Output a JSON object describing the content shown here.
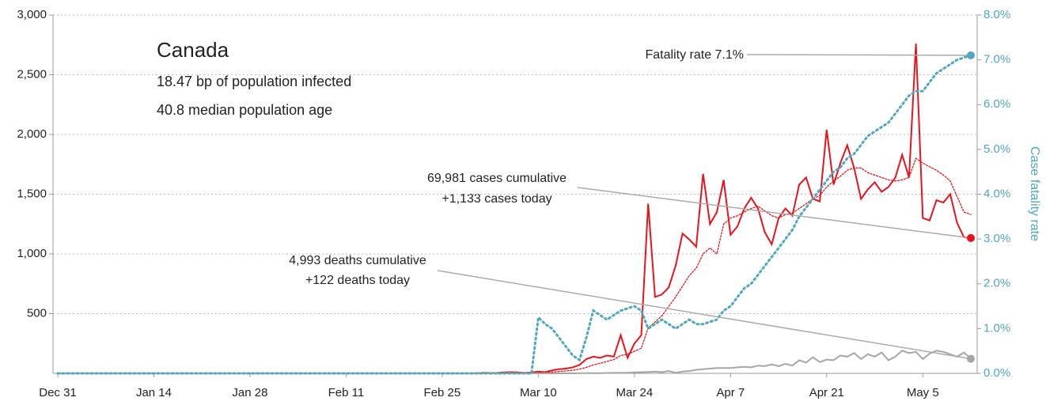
{
  "chart_data": {
    "type": "line",
    "title": "Canada",
    "subtitle": [
      "18.47 bp of population infected",
      "40.8 median population age"
    ],
    "y2label": "Case fatality rate",
    "annotations": {
      "fatality": "Fatality rate 7.1%",
      "cases": [
        "69,981 cases cumulative",
        "+1,133 cases today"
      ],
      "deaths": [
        "4,993 deaths cumulative",
        "+122 deaths today"
      ]
    },
    "categories": [
      "Dec 31",
      null,
      null,
      null,
      null,
      null,
      null,
      null,
      null,
      null,
      null,
      null,
      null,
      null,
      "Jan 14",
      null,
      null,
      null,
      null,
      null,
      null,
      null,
      null,
      null,
      null,
      null,
      null,
      null,
      "Jan 28",
      null,
      null,
      null,
      null,
      null,
      null,
      null,
      null,
      null,
      null,
      null,
      null,
      null,
      "Feb 11",
      null,
      null,
      null,
      null,
      null,
      null,
      null,
      null,
      null,
      null,
      null,
      null,
      null,
      "Feb 25",
      null,
      null,
      null,
      null,
      null,
      null,
      null,
      null,
      null,
      null,
      null,
      null,
      null,
      "Mar 10",
      null,
      null,
      null,
      null,
      null,
      null,
      null,
      null,
      null,
      null,
      null,
      null,
      null,
      "Mar 24",
      null,
      null,
      null,
      null,
      null,
      null,
      null,
      null,
      null,
      null,
      null,
      null,
      null,
      "Apr 7",
      null,
      null,
      null,
      null,
      null,
      null,
      null,
      null,
      null,
      null,
      null,
      null,
      null,
      "Apr 21",
      null,
      null,
      null,
      null,
      null,
      null,
      null,
      null,
      null,
      null,
      null,
      null,
      null,
      "May 5",
      null,
      null,
      null,
      null,
      null,
      null,
      null
    ],
    "series": [
      {
        "color": "#e8141c",
        "line_style": "solid",
        "end_dot": true,
        "values": [
          0,
          0,
          0,
          0,
          0,
          0,
          0,
          0,
          0,
          0,
          0,
          0,
          0,
          0,
          0,
          0,
          0,
          0,
          0,
          0,
          0,
          0,
          0,
          0,
          0,
          0,
          0,
          0,
          0,
          0,
          0,
          0,
          0,
          0,
          0,
          0,
          0,
          0,
          0,
          0,
          0,
          0,
          0,
          0,
          0,
          0,
          0,
          0,
          0,
          0,
          0,
          0,
          0,
          0,
          0,
          0,
          0,
          0,
          0,
          0,
          0,
          2,
          5,
          3,
          4,
          8,
          10,
          8,
          4,
          7,
          15,
          10,
          25,
          35,
          40,
          50,
          70,
          120,
          140,
          130,
          150,
          140,
          320,
          130,
          250,
          320,
          1420,
          640,
          660,
          720,
          900,
          1170,
          1120,
          1060,
          1670,
          1250,
          1350,
          1620,
          1160,
          1230,
          1380,
          1470,
          1380,
          1180,
          1080,
          1300,
          1380,
          1320,
          1580,
          1640,
          1460,
          1440,
          2040,
          1580,
          1760,
          1910,
          1720,
          1460,
          1540,
          1600,
          1520,
          1560,
          1640,
          1830,
          1640,
          2760,
          1300,
          1280,
          1450,
          1430,
          1500,
          1260,
          1140,
          1133
        ]
      },
      {
        "color": "#e8141c",
        "line_style": "dotted",
        "end_dot": false,
        "values": [
          0,
          0,
          0,
          0,
          0,
          0,
          0,
          0,
          0,
          0,
          0,
          0,
          0,
          0,
          0,
          0,
          0,
          0,
          0,
          0,
          0,
          0,
          0,
          0,
          0,
          0,
          0,
          0,
          0,
          0,
          0,
          0,
          0,
          0,
          0,
          0,
          0,
          0,
          0,
          0,
          0,
          0,
          0,
          0,
          0,
          0,
          0,
          0,
          0,
          0,
          0,
          0,
          0,
          0,
          0,
          0,
          0,
          0,
          0,
          0,
          0,
          1,
          2,
          2,
          3,
          4,
          5,
          6,
          6,
          6,
          8,
          9,
          11,
          15,
          20,
          26,
          35,
          50,
          70,
          85,
          100,
          115,
          150,
          160,
          185,
          210,
          380,
          430,
          480,
          560,
          640,
          730,
          820,
          880,
          1000,
          1050,
          1000,
          1250,
          1300,
          1320,
          1350,
          1380,
          1400,
          1360,
          1320,
          1300,
          1330,
          1340,
          1380,
          1420,
          1460,
          1490,
          1560,
          1610,
          1650,
          1700,
          1720,
          1720,
          1680,
          1660,
          1640,
          1620,
          1610,
          1620,
          1640,
          1800,
          1760,
          1730,
          1700,
          1660,
          1610,
          1480,
          1350,
          1330
        ]
      },
      {
        "color": "#a6a6a6",
        "line_style": "solid",
        "end_dot": true,
        "values": [
          0,
          0,
          0,
          0,
          0,
          0,
          0,
          0,
          0,
          0,
          0,
          0,
          0,
          0,
          0,
          0,
          0,
          0,
          0,
          0,
          0,
          0,
          0,
          0,
          0,
          0,
          0,
          0,
          0,
          0,
          0,
          0,
          0,
          0,
          0,
          0,
          0,
          0,
          0,
          0,
          0,
          0,
          0,
          0,
          0,
          0,
          0,
          0,
          0,
          0,
          0,
          0,
          0,
          0,
          0,
          0,
          0,
          0,
          0,
          0,
          0,
          0,
          0,
          0,
          0,
          0,
          0,
          0,
          0,
          0,
          0,
          0,
          0,
          0,
          0,
          0,
          1,
          1,
          2,
          2,
          3,
          4,
          5,
          5,
          8,
          10,
          12,
          15,
          10,
          20,
          5,
          15,
          20,
          30,
          35,
          40,
          45,
          45,
          45,
          50,
          55,
          50,
          65,
          60,
          75,
          60,
          80,
          65,
          110,
          90,
          135,
          95,
          115,
          110,
          150,
          140,
          170,
          120,
          160,
          140,
          175,
          110,
          140,
          190,
          170,
          180,
          120,
          165,
          190,
          180,
          160,
          140,
          175,
          122
        ]
      },
      {
        "color": "#4fa8c0",
        "line_style": "dotted",
        "end_dot": true,
        "axis": "y2",
        "values": [
          0,
          0,
          0,
          0,
          0,
          0,
          0,
          0,
          0,
          0,
          0,
          0,
          0,
          0,
          0,
          0,
          0,
          0,
          0,
          0,
          0,
          0,
          0,
          0,
          0,
          0,
          0,
          0,
          0,
          0,
          0,
          0,
          0,
          0,
          0,
          0,
          0,
          0,
          0,
          0,
          0,
          0,
          0,
          0,
          0,
          0,
          0,
          0,
          0,
          0,
          0,
          0,
          0,
          0,
          0,
          0,
          0,
          0,
          0,
          0,
          0,
          0,
          0,
          0,
          0,
          0,
          0,
          0,
          0,
          0,
          1.25,
          1.1,
          1.0,
          0.8,
          0.6,
          0.4,
          0.3,
          0.8,
          1.4,
          1.3,
          1.2,
          1.3,
          1.4,
          1.45,
          1.5,
          1.4,
          1.0,
          1.1,
          1.2,
          1.1,
          1.0,
          1.1,
          1.2,
          1.1,
          1.1,
          1.15,
          1.2,
          1.4,
          1.5,
          1.7,
          1.9,
          2.0,
          2.2,
          2.4,
          2.6,
          2.8,
          3.0,
          3.2,
          3.5,
          3.7,
          3.9,
          4.1,
          4.3,
          4.5,
          4.6,
          4.8,
          4.9,
          5.1,
          5.3,
          5.4,
          5.5,
          5.6,
          5.8,
          6.0,
          6.2,
          6.3,
          6.3,
          6.5,
          6.7,
          6.8,
          6.9,
          7.0,
          7.05,
          7.1
        ]
      }
    ],
    "ylim": [
      0,
      3000
    ],
    "yticks": [
      500,
      {
        "value": 1000,
        "label": "1,000"
      },
      {
        "value": 1500,
        "label": "1,500"
      },
      {
        "value": 2000,
        "label": "2,000"
      },
      {
        "value": 2500,
        "label": "2,500"
      },
      {
        "value": 3000,
        "label": "3,000"
      }
    ],
    "y2lim": [
      0,
      8
    ],
    "y2ticks": [
      {
        "value": 0,
        "label": "0.0%"
      },
      {
        "value": 1,
        "label": "1.0%"
      },
      {
        "value": 2,
        "label": "2.0%"
      },
      {
        "value": 3,
        "label": "3.0%"
      },
      {
        "value": 4,
        "label": "4.0%"
      },
      {
        "value": 5,
        "label": "5.0%"
      },
      {
        "value": 6,
        "label": "6.0%"
      },
      {
        "value": 7,
        "label": "7.0%"
      },
      {
        "value": 8,
        "label": "8.0%"
      }
    ],
    "y2color": "#4fa8c0",
    "grid": true
  }
}
